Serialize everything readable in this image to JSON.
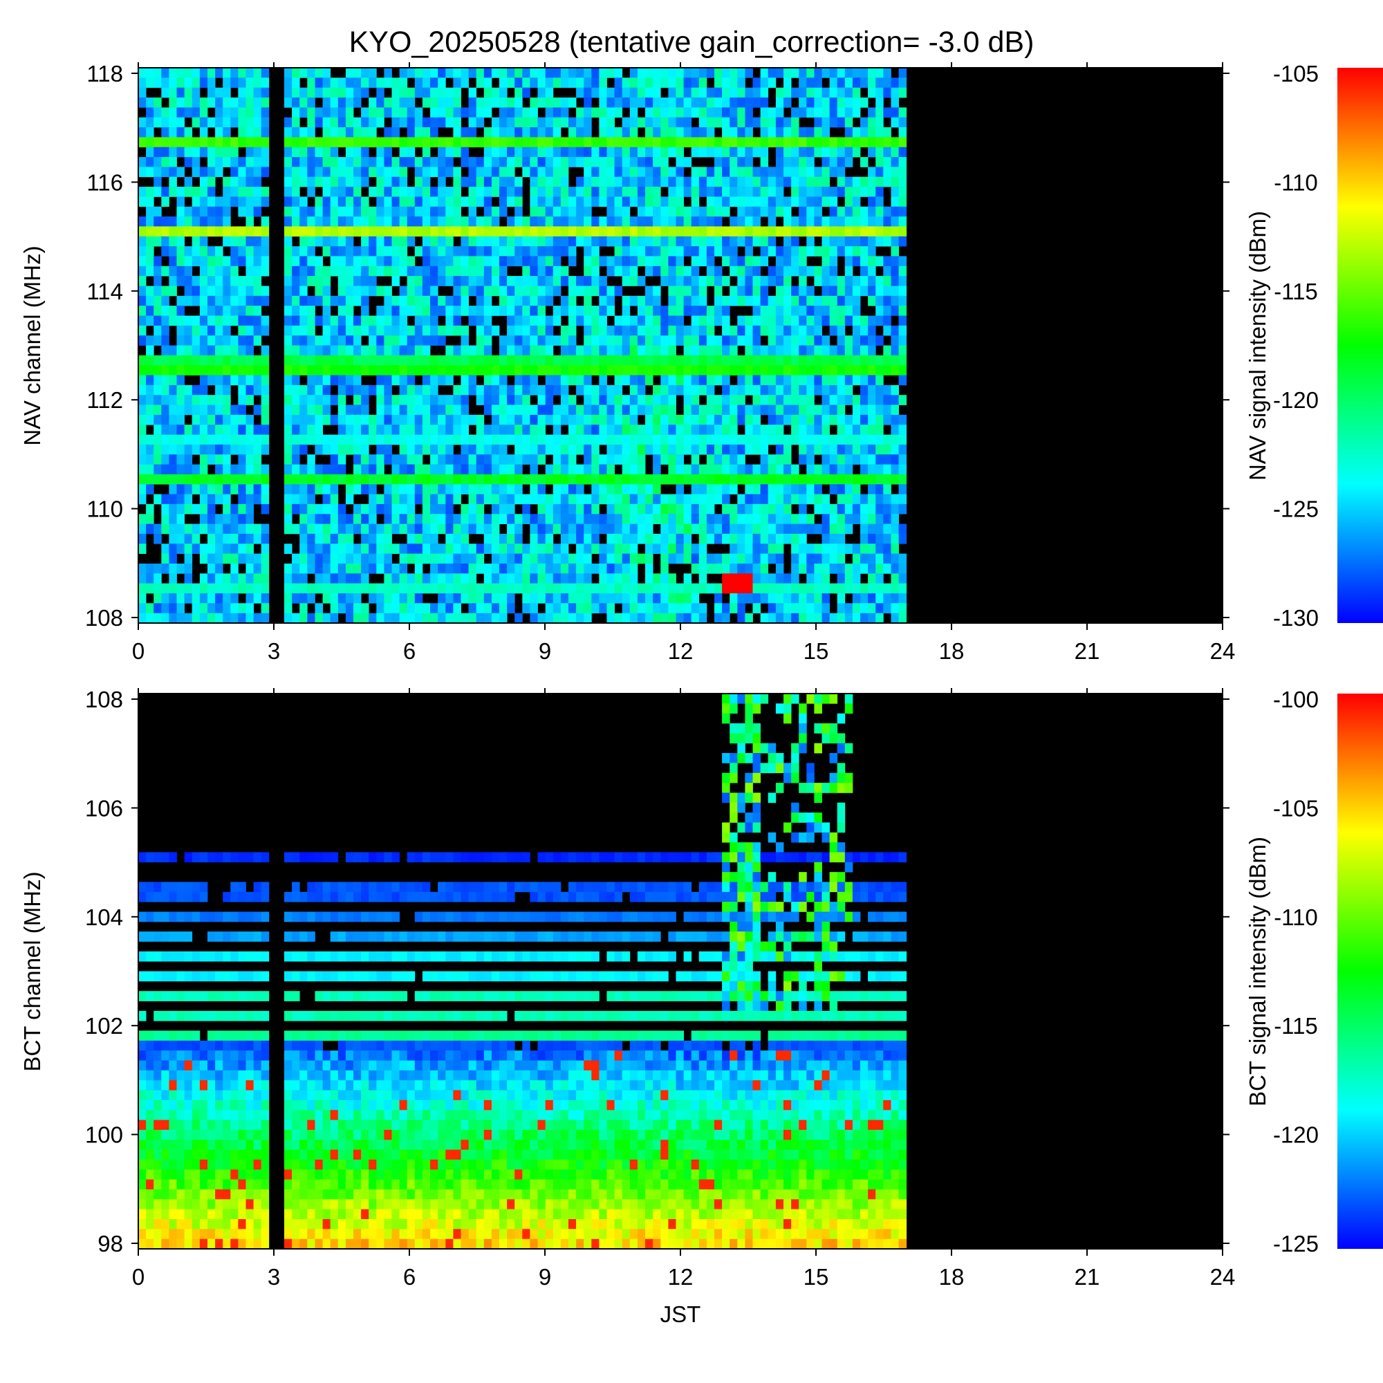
{
  "title": "KYO_20250528 (tentative gain_correction= -3.0 dB)",
  "colors": {
    "nodata": "#000000",
    "colormap": [
      "#0000ff",
      "#0080ff",
      "#00ffff",
      "#00ff80",
      "#00ff00",
      "#80ff00",
      "#ffff00",
      "#ff8000",
      "#ff0000"
    ]
  },
  "chart_data": [
    {
      "type": "heatmap",
      "name": "nav-panel",
      "x": {
        "label": "",
        "range": [
          0,
          24
        ],
        "ticks": [
          "0",
          "3",
          "6",
          "9",
          "12",
          "15",
          "18",
          "21",
          "24"
        ],
        "data_end": 17
      },
      "y": {
        "label": "NAV channel (MHz)",
        "range": [
          108,
          118
        ],
        "ticks": [
          "108",
          "110",
          "112",
          "114",
          "116",
          "118"
        ]
      },
      "colorbar": {
        "label": "NAV signal intensity (dBm)",
        "range": [
          -130,
          -105
        ],
        "ticks": [
          "-130",
          "-125",
          "-120",
          "-115",
          "-110",
          "-105"
        ]
      },
      "steady_lines": [
        {
          "freq": 116.65,
          "dbm": -117
        },
        {
          "freq": 115.0,
          "dbm": -114
        },
        {
          "freq": 112.6,
          "dbm": -118
        },
        {
          "freq": 112.7,
          "dbm": -120
        },
        {
          "freq": 110.6,
          "dbm": -119
        },
        {
          "freq": 111.3,
          "dbm": -124
        },
        {
          "freq": 108.7,
          "dbm": -123
        }
      ],
      "gaps": [
        {
          "x0": 3.0,
          "x1": 3.15
        }
      ],
      "hotspot": {
        "time": 13.2,
        "freq": 108.7,
        "dbm": -105
      }
    },
    {
      "type": "heatmap",
      "name": "bct-panel",
      "x": {
        "label": "JST",
        "range": [
          0,
          24
        ],
        "ticks": [
          "0",
          "3",
          "6",
          "9",
          "12",
          "15",
          "18",
          "21",
          "24"
        ],
        "data_end": 17
      },
      "y": {
        "label": "BCT channel (MHz)",
        "range": [
          98,
          108
        ],
        "ticks": [
          "98",
          "100",
          "102",
          "104",
          "106",
          "108"
        ]
      },
      "colorbar": {
        "label": "BCT signal intensity (dBm)",
        "range": [
          -125,
          -100
        ],
        "ticks": [
          "-125",
          "-120",
          "-115",
          "-110",
          "-105",
          "-100"
        ]
      },
      "station_lines": [
        {
          "freq": 105.0,
          "dbm": -124
        },
        {
          "freq": 104.6,
          "dbm": -123
        },
        {
          "freq": 104.3,
          "dbm": -123
        },
        {
          "freq": 103.9,
          "dbm": -122
        },
        {
          "freq": 103.6,
          "dbm": -121
        },
        {
          "freq": 103.2,
          "dbm": -119
        },
        {
          "freq": 102.9,
          "dbm": -119
        },
        {
          "freq": 102.5,
          "dbm": -117
        },
        {
          "freq": 102.2,
          "dbm": -117
        },
        {
          "freq": 101.8,
          "dbm": -116
        },
        {
          "freq": 101.6,
          "dbm": -123
        }
      ],
      "gaps": [
        {
          "x0": 3.0,
          "x1": 3.15
        }
      ],
      "burst": {
        "t0": 12.9,
        "t1": 15.8,
        "f0": 102.3,
        "f1": 108
      }
    }
  ]
}
